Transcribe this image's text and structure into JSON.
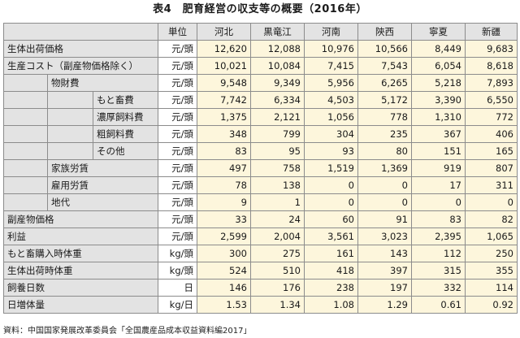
{
  "title": "表4　肥育経営の収支等の概要（2016年）",
  "header": {
    "unit_label": "単位",
    "regions": [
      "河北",
      "黒竜江",
      "河南",
      "陝西",
      "寧夏",
      "新疆"
    ]
  },
  "rows": [
    {
      "labels": [
        "生体出荷価格"
      ],
      "unit": "元/頭",
      "values": [
        "12,620",
        "12,088",
        "10,976",
        "10,566",
        "8,449",
        "9,683"
      ]
    },
    {
      "labels": [
        "生産コスト（副産物価格除く）"
      ],
      "unit": "元/頭",
      "values": [
        "10,021",
        "10,084",
        "7,415",
        "7,543",
        "6,054",
        "8,618"
      ]
    },
    {
      "labels": [
        "",
        "物財費"
      ],
      "unit": "元/頭",
      "values": [
        "9,548",
        "9,349",
        "5,956",
        "6,265",
        "5,218",
        "7,893"
      ]
    },
    {
      "labels": [
        "",
        "",
        "もと畜費"
      ],
      "unit": "元/頭",
      "values": [
        "7,742",
        "6,334",
        "4,503",
        "5,172",
        "3,390",
        "6,550"
      ]
    },
    {
      "labels": [
        "",
        "",
        "濃厚飼料費"
      ],
      "unit": "元/頭",
      "values": [
        "1,375",
        "2,121",
        "1,056",
        "778",
        "1,310",
        "772"
      ]
    },
    {
      "labels": [
        "",
        "",
        "粗飼料費"
      ],
      "unit": "元/頭",
      "values": [
        "348",
        "799",
        "304",
        "235",
        "367",
        "406"
      ]
    },
    {
      "labels": [
        "",
        "",
        "その他"
      ],
      "unit": "元/頭",
      "values": [
        "83",
        "95",
        "93",
        "80",
        "151",
        "165"
      ]
    },
    {
      "labels": [
        "",
        "家族労賃"
      ],
      "unit": "元/頭",
      "values": [
        "497",
        "758",
        "1,519",
        "1,369",
        "919",
        "807"
      ]
    },
    {
      "labels": [
        "",
        "雇用労賃"
      ],
      "unit": "元/頭",
      "values": [
        "78",
        "138",
        "0",
        "0",
        "17",
        "311"
      ]
    },
    {
      "labels": [
        "",
        "地代"
      ],
      "unit": "元/頭",
      "values": [
        "9",
        "1",
        "0",
        "0",
        "0",
        "0"
      ]
    },
    {
      "labels": [
        "副産物価格"
      ],
      "unit": "元/頭",
      "values": [
        "33",
        "24",
        "60",
        "91",
        "83",
        "82"
      ]
    },
    {
      "labels": [
        "利益"
      ],
      "unit": "元/頭",
      "values": [
        "2,599",
        "2,004",
        "3,561",
        "3,023",
        "2,395",
        "1,065"
      ]
    },
    {
      "labels": [
        "もと畜購入時体重"
      ],
      "unit": "kg/頭",
      "values": [
        "300",
        "275",
        "161",
        "143",
        "112",
        "250"
      ]
    },
    {
      "labels": [
        "生体出荷時体重"
      ],
      "unit": "kg/頭",
      "values": [
        "524",
        "510",
        "418",
        "397",
        "315",
        "355"
      ]
    },
    {
      "labels": [
        "飼養日数"
      ],
      "unit": "日",
      "values": [
        "146",
        "176",
        "238",
        "197",
        "332",
        "114"
      ]
    },
    {
      "labels": [
        "日増体量"
      ],
      "unit": "kg/日",
      "values": [
        "1.53",
        "1.34",
        "1.08",
        "1.29",
        "0.61",
        "0.92"
      ]
    }
  ],
  "source": "資料：中国国家発展改革委員会「全国農産品成本収益資料編2017」",
  "colors": {
    "label_bg": "#e3e3e3",
    "value_bg": "#fdf6dc",
    "border": "#8c8c8c"
  }
}
